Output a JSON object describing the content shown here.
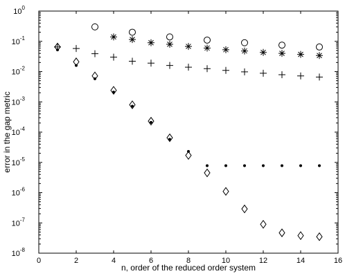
{
  "chart_data": {
    "type": "scatter",
    "title": "",
    "xlabel": "n, order of the reduced order system",
    "ylabel": "error in the gap metric",
    "xlim": [
      0,
      16
    ],
    "ylim": [
      1e-08,
      1
    ],
    "yscale": "log",
    "grid": false,
    "xticks": [
      0,
      2,
      4,
      6,
      8,
      10,
      12,
      14,
      16
    ],
    "yticks": [
      {
        "base": "10",
        "exp": "0",
        "value": 1
      },
      {
        "base": "10",
        "exp": "-1",
        "value": 0.1
      },
      {
        "base": "10",
        "exp": "-2",
        "value": 0.01
      },
      {
        "base": "10",
        "exp": "-3",
        "value": 0.001
      },
      {
        "base": "10",
        "exp": "-4",
        "value": 0.0001
      },
      {
        "base": "10",
        "exp": "-5",
        "value": 1e-05
      },
      {
        "base": "10",
        "exp": "-6",
        "value": 1e-06
      },
      {
        "base": "10",
        "exp": "-7",
        "value": 1e-07
      },
      {
        "base": "10",
        "exp": "-8",
        "value": 1e-08
      }
    ],
    "series": [
      {
        "marker": "circle",
        "x": [
          3,
          5,
          7,
          9,
          11,
          13,
          15
        ],
        "y": [
          0.3,
          0.2,
          0.14,
          0.11,
          0.09,
          0.075,
          0.065
        ]
      },
      {
        "marker": "star",
        "x": [
          4,
          5,
          6,
          7,
          8,
          9,
          10,
          11,
          12,
          13,
          14,
          15
        ],
        "y": [
          0.14,
          0.115,
          0.09,
          0.08,
          0.068,
          0.06,
          0.053,
          0.048,
          0.043,
          0.04,
          0.037,
          0.034
        ]
      },
      {
        "marker": "plus",
        "x": [
          1,
          2,
          3,
          4,
          5,
          6,
          7,
          8,
          9,
          10,
          11,
          12,
          13,
          14,
          15
        ],
        "y": [
          0.065,
          0.058,
          0.039,
          0.03,
          0.022,
          0.019,
          0.016,
          0.014,
          0.0125,
          0.011,
          0.0098,
          0.0088,
          0.0079,
          0.0072,
          0.0066
        ]
      },
      {
        "marker": "diamond",
        "x": [
          1,
          2,
          3,
          4,
          5,
          6,
          7,
          8,
          9,
          10,
          11,
          12,
          13,
          14,
          15
        ],
        "y": [
          0.065,
          0.021,
          0.0072,
          0.0024,
          0.0008,
          0.00023,
          6.5e-05,
          1.7e-05,
          4.5e-06,
          1.1e-06,
          2.9e-07,
          9e-08,
          4.7e-08,
          3.8e-08,
          3.5e-08
        ]
      },
      {
        "marker": "dot",
        "x": [
          1,
          2,
          3,
          4,
          5,
          6,
          7,
          8,
          9,
          10,
          11,
          12,
          13,
          14,
          15
        ],
        "y": [
          0.052,
          0.016,
          0.0058,
          0.0021,
          0.00072,
          0.00021,
          5.8e-05,
          2.3e-05,
          7.8e-06,
          7.8e-06,
          7.8e-06,
          7.8e-06,
          7.8e-06,
          7.8e-06,
          7.8e-06
        ]
      }
    ]
  }
}
